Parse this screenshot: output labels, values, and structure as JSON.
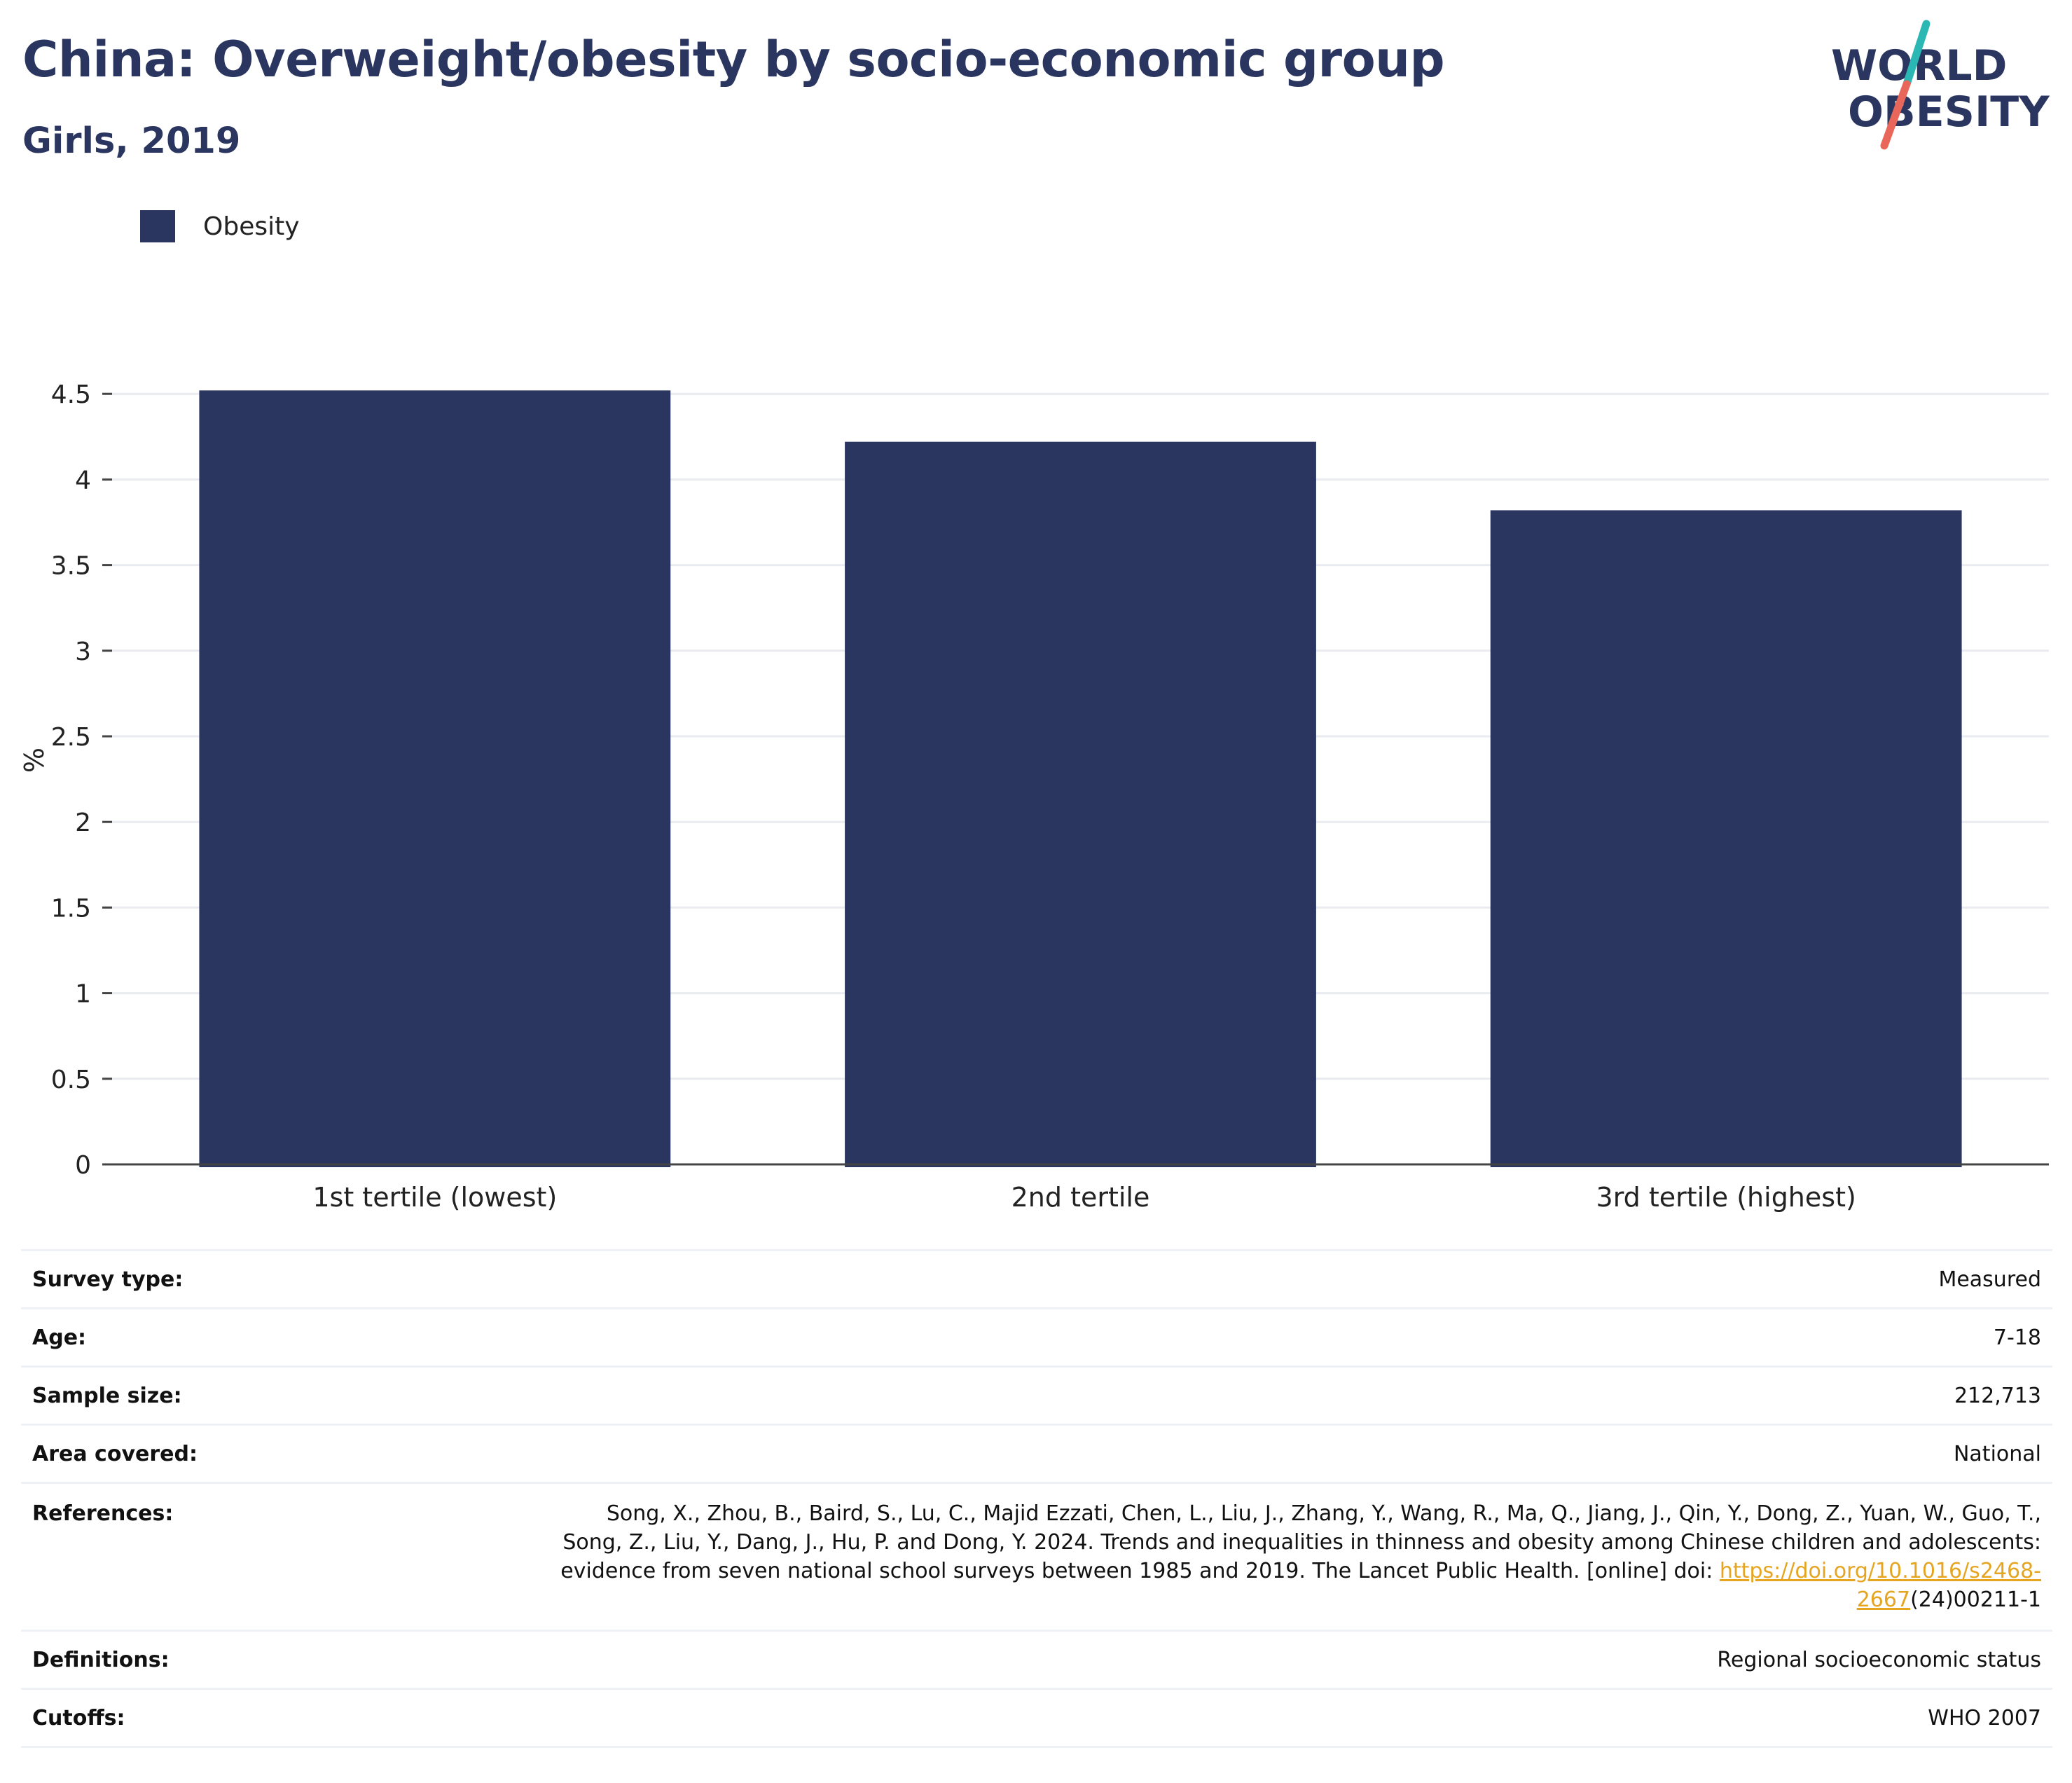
{
  "header": {
    "title": "China: Overweight/obesity by socio-economic group",
    "subtitle": "Girls, 2019"
  },
  "logo": {
    "line1": "WORLD",
    "line2": "OBESITY",
    "text_color": "#2a365f",
    "accent_teal": "#2bb7b3",
    "accent_coral": "#e8675a"
  },
  "chart_data": {
    "type": "bar",
    "categories": [
      "1st tertile (lowest)",
      "2nd tertile",
      "3rd tertile (highest)"
    ],
    "series": [
      {
        "name": "Obesity",
        "color": "#2a365f",
        "values": [
          4.52,
          4.22,
          3.82
        ]
      }
    ],
    "ylabel": "%",
    "ylim": [
      0,
      4.6
    ],
    "yticks": [
      "0",
      "0.5",
      "1",
      "1.5",
      "2",
      "2.5",
      "3",
      "3.5",
      "4",
      "4.5"
    ],
    "ytick_values": [
      0,
      0.5,
      1,
      1.5,
      2,
      2.5,
      3,
      3.5,
      4,
      4.5
    ],
    "grid": true,
    "legend_position": "top-left"
  },
  "info": {
    "survey_type_label": "Survey type:",
    "survey_type_value": "Measured",
    "age_label": "Age:",
    "age_value": "7-18",
    "sample_size_label": "Sample size:",
    "sample_size_value": "212,713",
    "area_label": "Area covered:",
    "area_value": "National",
    "references_label": "References:",
    "references_text": "Song, X., Zhou, B., Baird, S., Lu, C., Majid Ezzati, Chen, L., Liu, J., Zhang, Y., Wang, R., Ma, Q., Jiang, J., Qin, Y., Dong, Z., Yuan, W., Guo, T., Song, Z., Liu, Y., Dang, J., Hu, P. and Dong, Y. 2024. Trends and inequalities in thinness and obesity among Chinese children and adolescents: evidence from seven national school surveys between 1985 and 2019. The Lancet Public Health. [online] doi:",
    "references_link": "https://doi.org/10.1016/s2468-2667",
    "references_suffix": "(24)00211-1",
    "definitions_label": "Definitions:",
    "definitions_value": "Regional socioeconomic status",
    "cutoffs_label": "Cutoffs:",
    "cutoffs_value": "WHO 2007"
  }
}
